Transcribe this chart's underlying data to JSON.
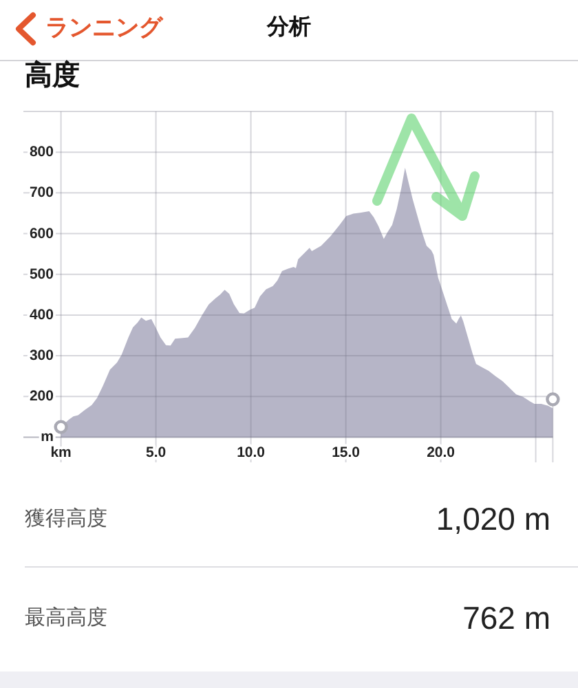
{
  "chart_data": {
    "type": "area",
    "title": "高度",
    "annotations": [
      "ランニング",
      "分析",
      "獲得高度",
      "1,020 m",
      "最高高度",
      "762 m"
    ],
    "x": [
      0,
      0.41,
      0.65,
      0.9,
      1.26,
      1.62,
      1.9,
      2.22,
      2.58,
      2.95,
      3.19,
      3.55,
      3.79,
      4.03,
      4.23,
      4.47,
      4.76,
      5.0,
      5.24,
      5.53,
      5.77,
      6.01,
      6.33,
      6.69,
      7.05,
      7.42,
      7.78,
      8.14,
      8.38,
      8.62,
      8.86,
      9.1,
      9.4,
      9.64,
      9.95,
      10.2,
      10.48,
      10.8,
      11.16,
      11.4,
      11.64,
      11.96,
      12.25,
      12.37,
      12.49,
      12.73,
      13.09,
      13.21,
      13.7,
      14.18,
      14.67,
      15.02,
      15.39,
      15.75,
      16.23,
      16.47,
      16.72,
      17.0,
      17.2,
      17.44,
      17.68,
      17.92,
      18.12,
      18.29,
      18.53,
      18.77,
      19.01,
      19.25,
      19.5,
      19.62,
      19.86,
      20.1,
      20.34,
      20.58,
      20.82,
      20.94,
      21.06,
      21.18,
      21.43,
      21.67,
      21.86,
      22.15,
      22.52,
      22.88,
      23.24,
      23.6,
      23.97,
      24.33,
      24.69,
      24.93,
      25.29,
      25.65,
      25.9
    ],
    "series": [
      {
        "color": "#b6b5c7",
        "values": [
          125,
          143,
          151,
          154,
          167,
          179,
          196,
          227,
          266,
          283,
          302,
          345,
          370,
          381,
          394,
          386,
          390,
          368,
          345,
          326,
          325,
          342,
          343,
          345,
          368,
          399,
          426,
          441,
          450,
          462,
          452,
          427,
          405,
          404,
          413,
          418,
          446,
          463,
          471,
          485,
          508,
          514,
          518,
          515,
          537,
          548,
          565,
          557,
          570,
          593,
          621,
          643,
          649,
          651,
          655,
          640,
          618,
          587,
          604,
          621,
          660,
          711,
          762,
          728,
          683,
          643,
          604,
          570,
          559,
          548,
          492,
          458,
          424,
          390,
          379,
          390,
          399,
          385,
          345,
          306,
          280,
          272,
          263,
          250,
          238,
          222,
          205,
          199,
          188,
          182,
          182,
          177,
          171
        ]
      },
      {
        "type": "scatter",
        "color": "#a9a9b3",
        "marker": "circle",
        "x": [
          0,
          25.9
        ],
        "values": [
          125,
          193
        ]
      }
    ],
    "xlim": [
      0,
      25.9
    ],
    "ylim": [
      100,
      900
    ],
    "xticks": [
      {
        "value": 0,
        "label": "km"
      },
      {
        "value": 5,
        "label": "5.0"
      },
      {
        "value": 10,
        "label": "10.0"
      },
      {
        "value": 15,
        "label": "15.0"
      },
      {
        "value": 20,
        "label": "20.0"
      },
      {
        "value": 25,
        "label": null
      }
    ],
    "yticks": [
      {
        "value": 100,
        "label": "m"
      },
      200,
      300,
      400,
      500,
      600,
      700,
      800,
      {
        "value": 900,
        "label": null
      }
    ],
    "grid": true
  }
}
